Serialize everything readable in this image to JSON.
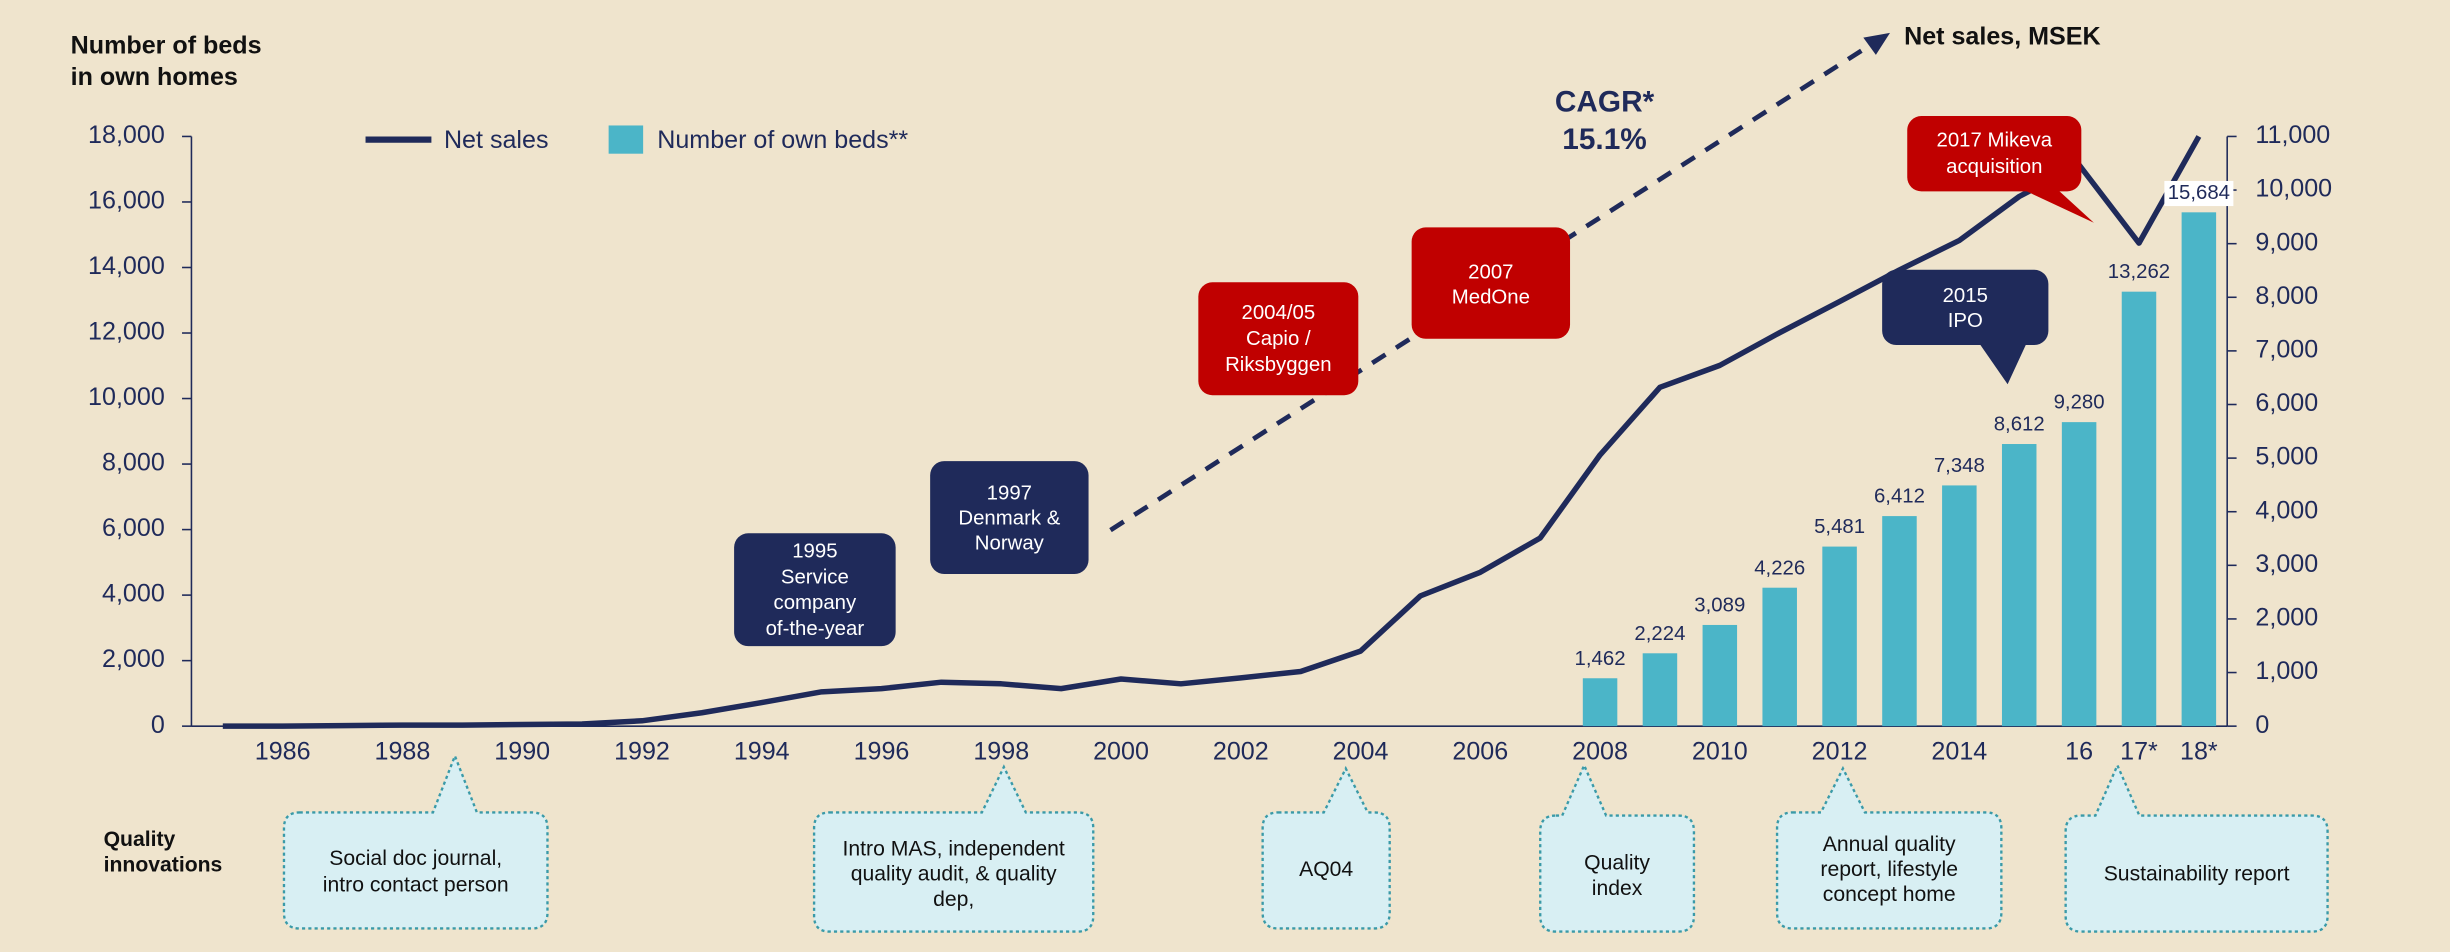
{
  "chart_data": {
    "type": "bar_line",
    "title_lines": [
      "Number of beds",
      "in own homes"
    ],
    "y2_title": "Net sales, MSEK",
    "cagr": [
      "CAGR*",
      "15.1%"
    ],
    "categories": [
      null,
      "1986",
      null,
      "1988",
      null,
      "1990",
      null,
      "1992",
      null,
      "1994",
      null,
      "1996",
      null,
      "1998",
      null,
      "2000",
      null,
      "2002",
      null,
      "2004",
      null,
      "2006",
      null,
      "2008",
      null,
      "2010",
      null,
      "2012",
      null,
      "2014",
      null,
      "16",
      "17*",
      "18*"
    ],
    "series": [
      {
        "name": "Net sales",
        "color": "#1f2a5a",
        "axis": "y2",
        "kind": "line",
        "values": [
          0,
          0,
          10,
          20,
          20,
          30,
          40,
          100,
          250,
          440,
          640,
          700,
          820,
          790,
          700,
          880,
          790,
          900,
          1020,
          1400,
          2430,
          2870,
          3510,
          5060,
          6320,
          6730,
          7340,
          7920,
          8510,
          9060,
          9880,
          10470,
          9010,
          11000
        ]
      },
      {
        "name": "Number of own beds**",
        "color": "#4bb5c8",
        "kind": "bar",
        "values": [
          null,
          null,
          null,
          null,
          null,
          null,
          null,
          null,
          null,
          null,
          null,
          null,
          null,
          null,
          null,
          null,
          null,
          null,
          null,
          null,
          null,
          null,
          null,
          1462,
          2224,
          3089,
          4226,
          5481,
          6412,
          7348,
          8612,
          9280,
          13262,
          15684
        ],
        "value_labels": [
          null,
          null,
          null,
          null,
          null,
          null,
          null,
          null,
          null,
          null,
          null,
          null,
          null,
          null,
          null,
          null,
          null,
          null,
          null,
          null,
          null,
          null,
          null,
          "1,462",
          "2,224",
          "3,089",
          "4,226",
          "5,481",
          "6,412",
          "7,348",
          "8,612",
          "9,280",
          "13,262",
          "15,684"
        ]
      }
    ],
    "ylim": [
      0,
      18000
    ],
    "yticks": [
      0,
      {
        "value": 2000,
        "label": "2,000"
      },
      {
        "value": 4000,
        "label": "4,000"
      },
      {
        "value": 6000,
        "label": "6,000"
      },
      {
        "value": 8000,
        "label": "8,000"
      },
      {
        "value": 10000,
        "label": "10,000"
      },
      {
        "value": 12000,
        "label": "12,000"
      },
      {
        "value": 14000,
        "label": "14,000"
      },
      {
        "value": 16000,
        "label": "16,000"
      },
      {
        "value": 18000,
        "label": "18,000"
      }
    ],
    "y2lim": [
      0,
      11000
    ],
    "y2ticks": [
      0,
      {
        "value": 1000,
        "label": "1,000"
      },
      {
        "value": 2000,
        "label": "2,000"
      },
      {
        "value": 3000,
        "label": "3,000"
      },
      {
        "value": 4000,
        "label": "4,000"
      },
      {
        "value": 5000,
        "label": "5,000"
      },
      {
        "value": 6000,
        "label": "6,000"
      },
      {
        "value": 7000,
        "label": "7,000"
      },
      {
        "value": 8000,
        "label": "8,000"
      },
      {
        "value": 9000,
        "label": "9,000"
      },
      {
        "value": 10000,
        "label": "10,000"
      },
      {
        "value": 11000,
        "label": "11,000"
      }
    ],
    "legend": "top-left",
    "callouts": [
      {
        "lines": [
          "1995",
          "Service",
          "company",
          "of-the-year"
        ],
        "color": "#1f2a5a"
      },
      {
        "lines": [
          "1997",
          "Denmark &",
          "Norway"
        ],
        "color": "#1f2a5a"
      },
      {
        "lines": [
          "2004/05",
          "Capio /",
          "Riksbyggen"
        ],
        "color": "#c00000"
      },
      {
        "lines": [
          "2007",
          "MedOne"
        ],
        "color": "#c00000"
      },
      {
        "lines": [
          "2015",
          "IPO"
        ],
        "color": "#1f2a5a"
      },
      {
        "lines": [
          "2017 Mikeva",
          "acquisition"
        ],
        "color": "#c00000"
      }
    ],
    "quality_title": [
      "Quality",
      "innovations"
    ],
    "quality_innovations": [
      {
        "lines": [
          "Social doc journal,",
          "intro contact person"
        ]
      },
      {
        "lines": [
          "Intro MAS, independent",
          "quality audit, &  quality",
          "dep,"
        ]
      },
      {
        "lines": [
          "AQ04"
        ]
      },
      {
        "lines": [
          "Quality",
          "index"
        ]
      },
      {
        "lines": [
          "Annual quality",
          "report,  lifestyle",
          "concept home"
        ]
      },
      {
        "lines": [
          "Sustainability report"
        ]
      }
    ]
  }
}
